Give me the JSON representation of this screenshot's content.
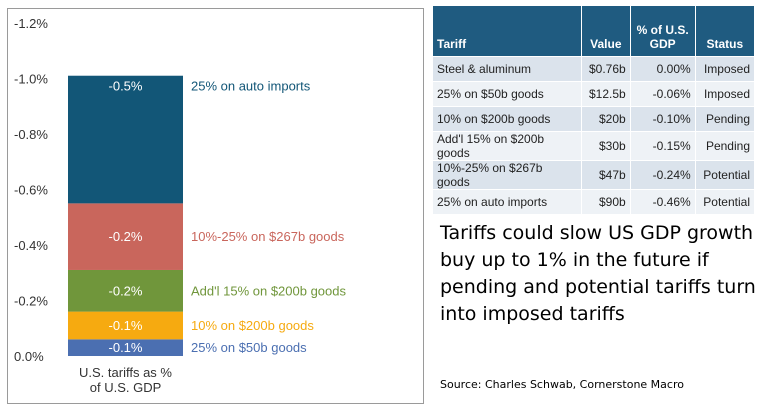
{
  "chart_data": {
    "type": "bar",
    "stacked": true,
    "title": "",
    "category": "U.S. tariffs as % of U.S. GDP",
    "ylim": [
      0.0,
      -1.2
    ],
    "y_ticks": [
      "-1.2%",
      "-1.0%",
      "-0.8%",
      "-0.6%",
      "-0.4%",
      "-0.2%",
      "0.0%"
    ],
    "y_tick_values": [
      -1.2,
      -1.0,
      -0.8,
      -0.6,
      -0.4,
      -0.2,
      0.0
    ],
    "segments": [
      {
        "name": "25% on $50b goods",
        "value": -0.06,
        "label": "-0.1%",
        "color": "#4b6fb1"
      },
      {
        "name": "10% on $200b goods",
        "value": -0.1,
        "label": "-0.1%",
        "color": "#f6aa10"
      },
      {
        "name": "Add'l 15% on $200b goods",
        "value": -0.15,
        "label": "-0.2%",
        "color": "#70963b"
      },
      {
        "name": "10%-25% on $267b goods",
        "value": -0.24,
        "label": "-0.2%",
        "color": "#c9665c"
      },
      {
        "name": "25% on auto imports",
        "value": -0.46,
        "label": "-0.5%",
        "color": "#125677"
      }
    ]
  },
  "table": {
    "headers": {
      "tariff": "Tariff",
      "value": "Value",
      "pct": "% of U.S. GDP",
      "status": "Status"
    },
    "rows": [
      {
        "tariff": "Steel  & aluminum",
        "value": "$0.76b",
        "pct": "0.00%",
        "status": "Imposed"
      },
      {
        "tariff": "25% on $50b goods",
        "value": "$12.5b",
        "pct": "-0.06%",
        "status": "Imposed"
      },
      {
        "tariff": "10% on $200b goods",
        "value": "$20b",
        "pct": "-0.10%",
        "status": "Pending"
      },
      {
        "tariff": "Add'l 15% on $200b goods",
        "value": "$30b",
        "pct": "-0.15%",
        "status": "Pending"
      },
      {
        "tariff": "10%-25% on $267b goods",
        "value": "$47b",
        "pct": "-0.24%",
        "status": "Potential"
      },
      {
        "tariff": "25% on auto imports",
        "value": "$90b",
        "pct": "-0.46%",
        "status": "Potential"
      }
    ]
  },
  "headline": "Tariffs could slow US GDP growth buy  up to 1% in the future if pending and potential tariffs turn into imposed tariffs",
  "source": "Source: Charles Schwab, Cornerstone Macro"
}
